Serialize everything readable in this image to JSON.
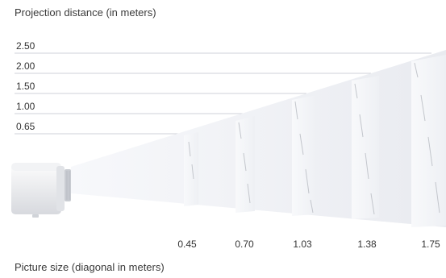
{
  "title": "Projection distance (in meters)",
  "footer": "Picture size (diagonal in meters)",
  "distance_labels": [
    "2.50",
    "2.00",
    "1.50",
    "1.00",
    "0.65"
  ],
  "size_labels": [
    "0.45",
    "0.70",
    "1.03",
    "1.38",
    "1.75"
  ],
  "icons": {
    "projector": "projector-icon"
  }
}
